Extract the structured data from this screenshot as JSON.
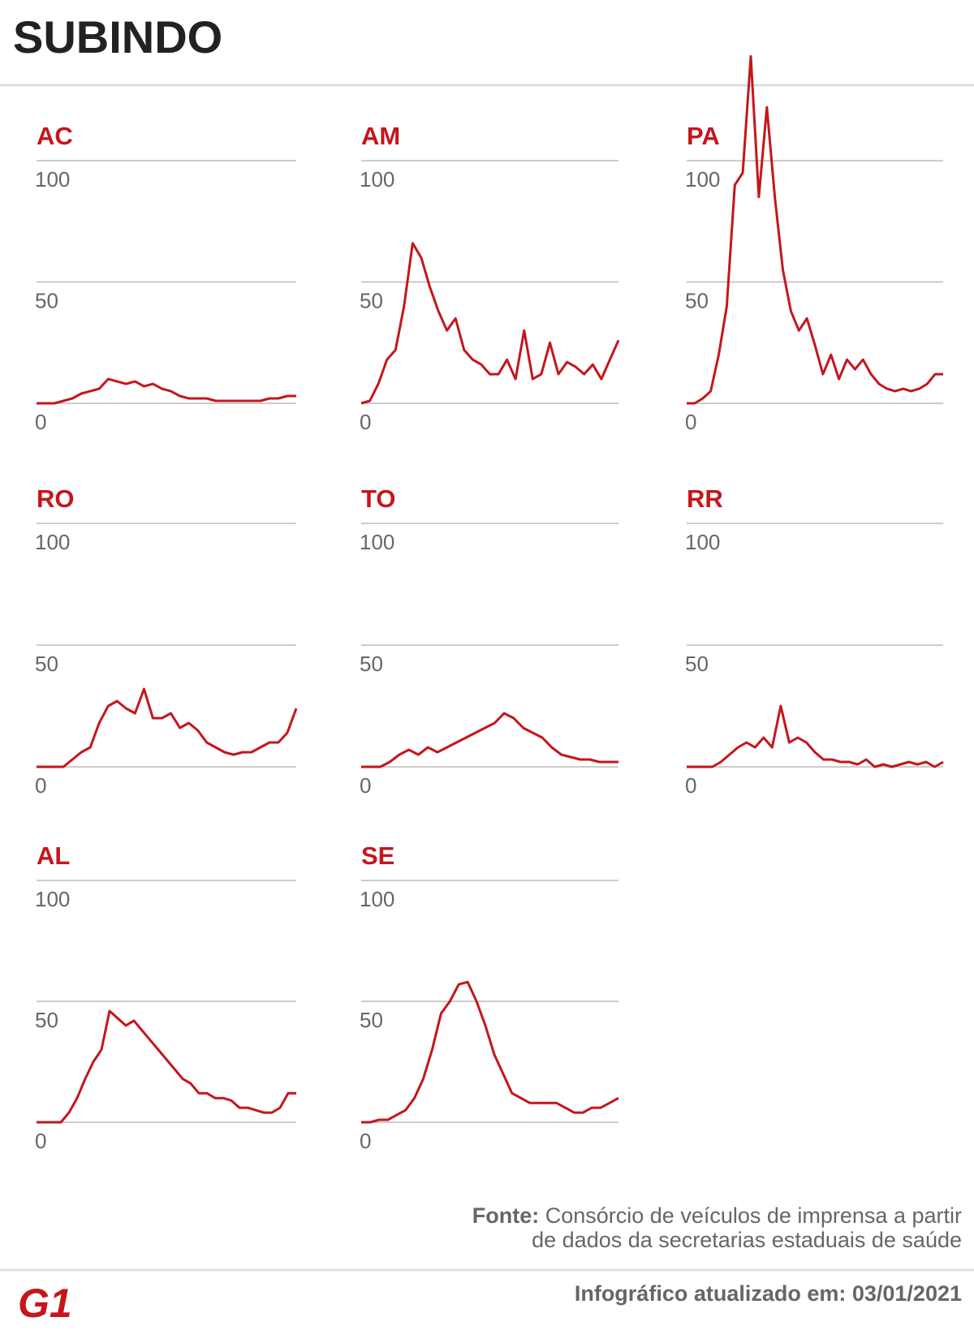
{
  "title": "SUBINDO",
  "chart_data": [
    {
      "type": "line",
      "title": "AC",
      "color": "#c4161c",
      "ylim": [
        0,
        100
      ],
      "yticks": [
        0,
        50,
        100
      ],
      "values": [
        0,
        0,
        0,
        1,
        2,
        4,
        5,
        6,
        10,
        9,
        8,
        9,
        7,
        8,
        6,
        5,
        3,
        2,
        2,
        2,
        1,
        1,
        1,
        1,
        1,
        1,
        2,
        2,
        3,
        3
      ]
    },
    {
      "type": "line",
      "title": "AM",
      "color": "#c4161c",
      "ylim": [
        0,
        100
      ],
      "yticks": [
        0,
        50,
        100
      ],
      "values": [
        0,
        1,
        8,
        18,
        22,
        40,
        66,
        60,
        48,
        38,
        30,
        35,
        22,
        18,
        16,
        12,
        12,
        18,
        10,
        30,
        10,
        12,
        25,
        12,
        17,
        15,
        12,
        16,
        10,
        18,
        26
      ]
    },
    {
      "type": "line",
      "title": "PA",
      "color": "#c4161c",
      "ylim": [
        0,
        100
      ],
      "yticks": [
        0,
        50,
        100
      ],
      "values": [
        0,
        0,
        2,
        5,
        20,
        40,
        90,
        95,
        143,
        85,
        122,
        85,
        55,
        38,
        30,
        35,
        24,
        12,
        20,
        10,
        18,
        14,
        18,
        12,
        8,
        6,
        5,
        6,
        5,
        6,
        8,
        12,
        12
      ]
    },
    {
      "type": "line",
      "title": "RO",
      "color": "#c4161c",
      "ylim": [
        0,
        100
      ],
      "yticks": [
        0,
        50,
        100
      ],
      "values": [
        0,
        0,
        0,
        0,
        3,
        6,
        8,
        18,
        25,
        27,
        24,
        22,
        32,
        20,
        20,
        22,
        16,
        18,
        15,
        10,
        8,
        6,
        5,
        6,
        6,
        8,
        10,
        10,
        14,
        24
      ]
    },
    {
      "type": "line",
      "title": "TO",
      "color": "#c4161c",
      "ylim": [
        0,
        100
      ],
      "yticks": [
        0,
        50,
        100
      ],
      "values": [
        0,
        0,
        0,
        2,
        5,
        7,
        5,
        8,
        6,
        8,
        10,
        12,
        14,
        16,
        18,
        22,
        20,
        16,
        14,
        12,
        8,
        5,
        4,
        3,
        3,
        2,
        2,
        2
      ]
    },
    {
      "type": "line",
      "title": "RR",
      "color": "#c4161c",
      "ylim": [
        0,
        100
      ],
      "yticks": [
        0,
        50,
        100
      ],
      "values": [
        0,
        0,
        0,
        0,
        2,
        5,
        8,
        10,
        8,
        12,
        8,
        25,
        10,
        12,
        10,
        6,
        3,
        3,
        2,
        2,
        1,
        3,
        0,
        1,
        0,
        1,
        2,
        1,
        2,
        0,
        2
      ]
    },
    {
      "type": "line",
      "title": "AL",
      "color": "#c4161c",
      "ylim": [
        0,
        100
      ],
      "yticks": [
        0,
        50,
        100
      ],
      "values": [
        0,
        0,
        0,
        0,
        4,
        10,
        18,
        25,
        30,
        46,
        43,
        40,
        42,
        38,
        34,
        30,
        26,
        22,
        18,
        16,
        12,
        12,
        10,
        10,
        9,
        6,
        6,
        5,
        4,
        4,
        6,
        12,
        12
      ]
    },
    {
      "type": "line",
      "title": "SE",
      "color": "#c4161c",
      "ylim": [
        0,
        100
      ],
      "yticks": [
        0,
        50,
        100
      ],
      "values": [
        0,
        0,
        1,
        1,
        3,
        5,
        10,
        18,
        30,
        45,
        50,
        57,
        58,
        50,
        40,
        28,
        20,
        12,
        10,
        8,
        8,
        8,
        8,
        6,
        4,
        4,
        6,
        6,
        8,
        10
      ]
    }
  ],
  "source_label": "Fonte:",
  "source_lines": [
    "Consórcio de veículos de imprensa a partir",
    "de dados da secretarias estaduais de saúde"
  ],
  "updated": "Infográfico atualizado em: 03/01/2021",
  "logo": "G1"
}
